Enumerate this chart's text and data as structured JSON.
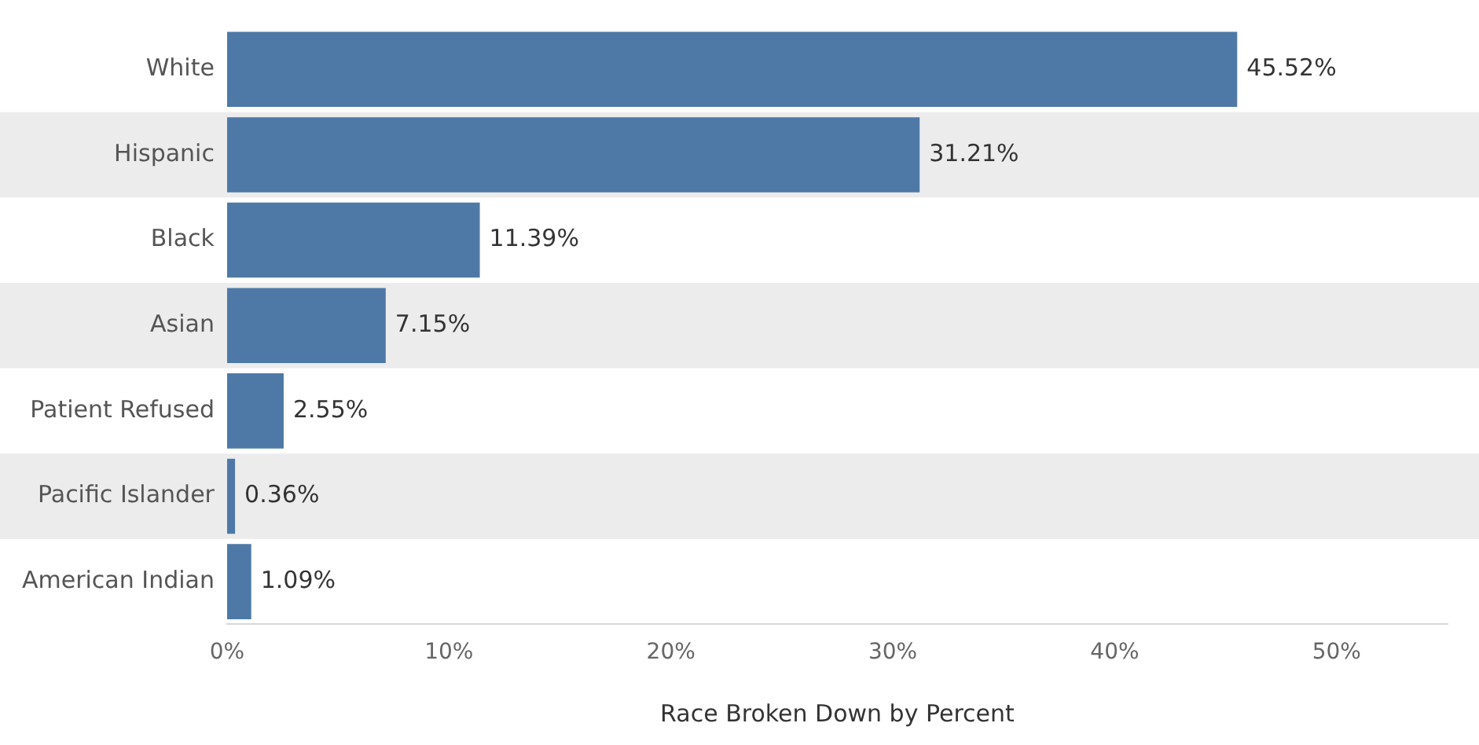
{
  "chart_data": {
    "type": "bar",
    "orientation": "horizontal",
    "xlabel": "Race Broken Down by Percent",
    "categories": [
      "White",
      "Hispanic",
      "Black",
      "Asian",
      "Patient Refused",
      "Pacific Islander",
      "American Indian"
    ],
    "values": [
      45.52,
      31.21,
      11.39,
      7.15,
      2.55,
      0.36,
      1.09
    ],
    "value_labels": [
      "45.52%",
      "31.21%",
      "11.39%",
      "7.15%",
      "2.55%",
      "0.36%",
      "1.09%"
    ],
    "color": "#4e79a7",
    "xlim": [
      0,
      55
    ],
    "xticks": [
      {
        "value": 0,
        "label": "0%"
      },
      {
        "value": 10,
        "label": "10%"
      },
      {
        "value": 20,
        "label": "20%"
      },
      {
        "value": 30,
        "label": "30%"
      },
      {
        "value": 40,
        "label": "40%"
      },
      {
        "value": 50,
        "label": "50%"
      }
    ],
    "grid": false,
    "legend": false
  }
}
